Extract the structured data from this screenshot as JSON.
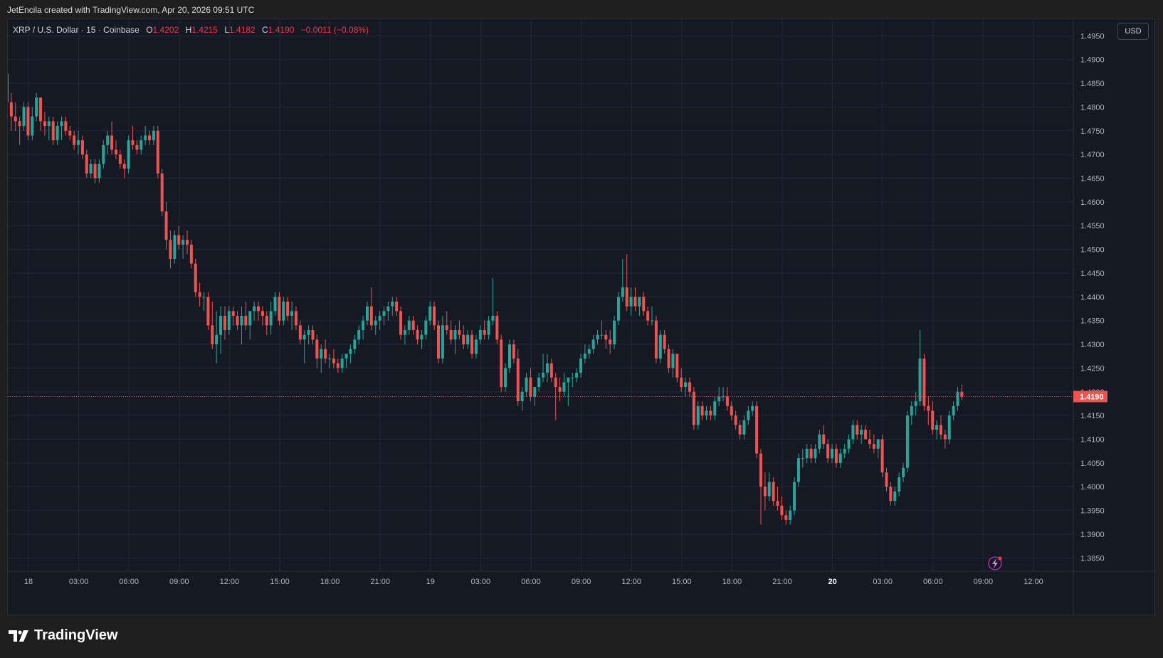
{
  "header": {
    "credit": "JetEncila created with TradingView.com, Apr 20, 2026 09:51 UTC"
  },
  "legend": {
    "symbol": "XRP / U.S. Dollar · 15 · Coinbase",
    "o_label": "O",
    "o_value": "1.4202",
    "h_label": "H",
    "h_value": "1.4215",
    "l_label": "L",
    "l_value": "1.4182",
    "c_label": "C",
    "c_value": "1.4190",
    "change": "−0.0011 (−0.08%)"
  },
  "currency_button": "USD",
  "brand": {
    "name": "TradingView",
    "icon": "tradingview-logo-icon"
  },
  "colors": {
    "up": "#26a69a",
    "down": "#ef5350",
    "grid": "#232733",
    "background": "#151924",
    "text": "#b2b5be"
  },
  "chart_data": {
    "type": "candlestick",
    "symbol": "XRP / U.S. Dollar",
    "interval": "15",
    "exchange": "Coinbase",
    "last_price": 1.419,
    "last_price_label": "1.4190",
    "ylim": [
      1.3825,
      1.4955
    ],
    "y_ticks": [
      "1.4950",
      "1.4900",
      "1.4850",
      "1.4800",
      "1.4750",
      "1.4700",
      "1.4650",
      "1.4600",
      "1.4550",
      "1.4500",
      "1.4450",
      "1.4400",
      "1.4350",
      "1.4300",
      "1.4250",
      "1.4200",
      "1.4150",
      "1.4100",
      "1.4050",
      "1.4000",
      "1.3950",
      "1.3900",
      "1.3850"
    ],
    "x_ticks": [
      {
        "label": "18",
        "bold": false
      },
      {
        "label": "03:00",
        "bold": false
      },
      {
        "label": "06:00",
        "bold": false
      },
      {
        "label": "09:00",
        "bold": false
      },
      {
        "label": "12:00",
        "bold": false
      },
      {
        "label": "15:00",
        "bold": false
      },
      {
        "label": "18:00",
        "bold": false
      },
      {
        "label": "21:00",
        "bold": false
      },
      {
        "label": "19",
        "bold": false
      },
      {
        "label": "03:00",
        "bold": false
      },
      {
        "label": "06:00",
        "bold": false
      },
      {
        "label": "09:00",
        "bold": false
      },
      {
        "label": "12:00",
        "bold": false
      },
      {
        "label": "15:00",
        "bold": false
      },
      {
        "label": "18:00",
        "bold": false
      },
      {
        "label": "21:00",
        "bold": false
      },
      {
        "label": "20",
        "bold": true
      },
      {
        "label": "03:00",
        "bold": false
      },
      {
        "label": "06:00",
        "bold": false
      },
      {
        "label": "09:00",
        "bold": false
      },
      {
        "label": "12:00",
        "bold": false
      }
    ],
    "grid": true,
    "ohlc": [
      [
        1.487,
        1.488,
        1.476,
        1.481
      ],
      [
        1.481,
        1.483,
        1.475,
        1.478
      ],
      [
        1.478,
        1.481,
        1.475,
        1.477
      ],
      [
        1.477,
        1.478,
        1.472,
        1.476
      ],
      [
        1.476,
        1.481,
        1.475,
        1.48
      ],
      [
        1.48,
        1.481,
        1.473,
        1.474
      ],
      [
        1.474,
        1.48,
        1.473,
        1.478
      ],
      [
        1.478,
        1.483,
        1.477,
        1.482
      ],
      [
        1.482,
        1.482,
        1.475,
        1.477
      ],
      [
        1.477,
        1.479,
        1.474,
        1.476
      ],
      [
        1.476,
        1.478,
        1.473,
        1.477
      ],
      [
        1.477,
        1.478,
        1.472,
        1.473
      ],
      [
        1.473,
        1.477,
        1.472,
        1.476
      ],
      [
        1.476,
        1.478,
        1.473,
        1.477
      ],
      [
        1.477,
        1.478,
        1.474,
        1.475
      ],
      [
        1.475,
        1.476,
        1.473,
        1.474
      ],
      [
        1.474,
        1.475,
        1.471,
        1.472
      ],
      [
        1.472,
        1.475,
        1.47,
        1.473
      ],
      [
        1.473,
        1.474,
        1.469,
        1.47
      ],
      [
        1.47,
        1.471,
        1.465,
        1.466
      ],
      [
        1.466,
        1.469,
        1.465,
        1.468
      ],
      [
        1.468,
        1.469,
        1.464,
        1.465
      ],
      [
        1.465,
        1.469,
        1.464,
        1.468
      ],
      [
        1.468,
        1.473,
        1.467,
        1.472
      ],
      [
        1.472,
        1.475,
        1.47,
        1.474
      ],
      [
        1.474,
        1.477,
        1.47,
        1.471
      ],
      [
        1.471,
        1.473,
        1.469,
        1.47
      ],
      [
        1.47,
        1.471,
        1.467,
        1.468
      ],
      [
        1.468,
        1.469,
        1.465,
        1.467
      ],
      [
        1.467,
        1.474,
        1.466,
        1.473
      ],
      [
        1.473,
        1.476,
        1.471,
        1.472
      ],
      [
        1.472,
        1.473,
        1.47,
        1.471
      ],
      [
        1.471,
        1.474,
        1.47,
        1.473
      ],
      [
        1.473,
        1.476,
        1.472,
        1.474
      ],
      [
        1.474,
        1.475,
        1.472,
        1.473
      ],
      [
        1.473,
        1.476,
        1.472,
        1.475
      ],
      [
        1.475,
        1.476,
        1.465,
        1.466
      ],
      [
        1.466,
        1.467,
        1.457,
        1.458
      ],
      [
        1.458,
        1.46,
        1.45,
        1.452
      ],
      [
        1.452,
        1.454,
        1.446,
        1.448
      ],
      [
        1.448,
        1.454,
        1.447,
        1.453
      ],
      [
        1.453,
        1.455,
        1.45,
        1.451
      ],
      [
        1.451,
        1.453,
        1.448,
        1.452
      ],
      [
        1.452,
        1.454,
        1.449,
        1.451
      ],
      [
        1.451,
        1.452,
        1.446,
        1.447
      ],
      [
        1.447,
        1.448,
        1.44,
        1.441
      ],
      [
        1.441,
        1.443,
        1.438,
        1.44
      ],
      [
        1.44,
        1.441,
        1.437,
        1.44
      ],
      [
        1.44,
        1.441,
        1.433,
        1.434
      ],
      [
        1.434,
        1.439,
        1.429,
        1.43
      ],
      [
        1.43,
        1.437,
        1.426,
        1.432
      ],
      [
        1.432,
        1.438,
        1.428,
        1.436
      ],
      [
        1.436,
        1.438,
        1.431,
        1.433
      ],
      [
        1.433,
        1.438,
        1.432,
        1.437
      ],
      [
        1.437,
        1.438,
        1.434,
        1.436
      ],
      [
        1.436,
        1.437,
        1.433,
        1.434
      ],
      [
        1.434,
        1.438,
        1.43,
        1.436
      ],
      [
        1.436,
        1.439,
        1.433,
        1.434
      ],
      [
        1.434,
        1.437,
        1.431,
        1.437
      ],
      [
        1.437,
        1.439,
        1.435,
        1.438
      ],
      [
        1.438,
        1.439,
        1.435,
        1.437
      ],
      [
        1.437,
        1.438,
        1.434,
        1.436
      ],
      [
        1.436,
        1.437,
        1.432,
        1.434
      ],
      [
        1.434,
        1.439,
        1.432,
        1.437
      ],
      [
        1.437,
        1.441,
        1.436,
        1.44
      ],
      [
        1.44,
        1.441,
        1.434,
        1.435
      ],
      [
        1.435,
        1.44,
        1.434,
        1.439
      ],
      [
        1.439,
        1.44,
        1.435,
        1.436
      ],
      [
        1.436,
        1.439,
        1.433,
        1.437
      ],
      [
        1.437,
        1.438,
        1.433,
        1.434
      ],
      [
        1.434,
        1.435,
        1.43,
        1.431
      ],
      [
        1.431,
        1.433,
        1.426,
        1.432
      ],
      [
        1.432,
        1.434,
        1.43,
        1.433
      ],
      [
        1.433,
        1.434,
        1.43,
        1.431
      ],
      [
        1.431,
        1.432,
        1.425,
        1.427
      ],
      [
        1.427,
        1.43,
        1.424,
        1.429
      ],
      [
        1.429,
        1.431,
        1.426,
        1.427
      ],
      [
        1.427,
        1.428,
        1.425,
        1.427
      ],
      [
        1.427,
        1.429,
        1.425,
        1.426
      ],
      [
        1.426,
        1.427,
        1.424,
        1.425
      ],
      [
        1.425,
        1.428,
        1.424,
        1.427
      ],
      [
        1.427,
        1.428,
        1.425,
        1.428
      ],
      [
        1.428,
        1.43,
        1.426,
        1.429
      ],
      [
        1.429,
        1.432,
        1.428,
        1.431
      ],
      [
        1.431,
        1.434,
        1.43,
        1.433
      ],
      [
        1.433,
        1.436,
        1.431,
        1.435
      ],
      [
        1.435,
        1.439,
        1.434,
        1.438
      ],
      [
        1.438,
        1.442,
        1.433,
        1.434
      ],
      [
        1.434,
        1.436,
        1.432,
        1.435
      ],
      [
        1.435,
        1.437,
        1.433,
        1.436
      ],
      [
        1.436,
        1.438,
        1.434,
        1.437
      ],
      [
        1.437,
        1.439,
        1.435,
        1.438
      ],
      [
        1.438,
        1.44,
        1.436,
        1.439
      ],
      [
        1.439,
        1.44,
        1.436,
        1.437
      ],
      [
        1.437,
        1.438,
        1.431,
        1.432
      ],
      [
        1.432,
        1.434,
        1.43,
        1.433
      ],
      [
        1.433,
        1.436,
        1.432,
        1.435
      ],
      [
        1.435,
        1.436,
        1.432,
        1.433
      ],
      [
        1.433,
        1.434,
        1.43,
        1.431
      ],
      [
        1.431,
        1.433,
        1.429,
        1.432
      ],
      [
        1.432,
        1.436,
        1.431,
        1.435
      ],
      [
        1.435,
        1.439,
        1.434,
        1.438
      ],
      [
        1.438,
        1.439,
        1.433,
        1.434
      ],
      [
        1.434,
        1.435,
        1.426,
        1.427
      ],
      [
        1.427,
        1.436,
        1.426,
        1.434
      ],
      [
        1.434,
        1.437,
        1.432,
        1.433
      ],
      [
        1.433,
        1.435,
        1.43,
        1.431
      ],
      [
        1.431,
        1.434,
        1.428,
        1.433
      ],
      [
        1.433,
        1.435,
        1.431,
        1.432
      ],
      [
        1.432,
        1.434,
        1.429,
        1.43
      ],
      [
        1.43,
        1.433,
        1.429,
        1.432
      ],
      [
        1.432,
        1.433,
        1.427,
        1.428
      ],
      [
        1.428,
        1.432,
        1.427,
        1.431
      ],
      [
        1.431,
        1.434,
        1.43,
        1.433
      ],
      [
        1.433,
        1.435,
        1.431,
        1.432
      ],
      [
        1.432,
        1.436,
        1.431,
        1.435
      ],
      [
        1.435,
        1.444,
        1.434,
        1.436
      ],
      [
        1.436,
        1.437,
        1.43,
        1.431
      ],
      [
        1.431,
        1.432,
        1.42,
        1.421
      ],
      [
        1.421,
        1.426,
        1.42,
        1.425
      ],
      [
        1.425,
        1.431,
        1.424,
        1.43
      ],
      [
        1.43,
        1.431,
        1.426,
        1.427
      ],
      [
        1.427,
        1.429,
        1.417,
        1.418
      ],
      [
        1.418,
        1.421,
        1.416,
        1.42
      ],
      [
        1.42,
        1.424,
        1.419,
        1.423
      ],
      [
        1.423,
        1.425,
        1.418,
        1.419
      ],
      [
        1.419,
        1.421,
        1.417,
        1.421
      ],
      [
        1.421,
        1.424,
        1.42,
        1.423
      ],
      [
        1.423,
        1.428,
        1.422,
        1.424
      ],
      [
        1.424,
        1.428,
        1.422,
        1.426
      ],
      [
        1.426,
        1.427,
        1.422,
        1.423
      ],
      [
        1.423,
        1.424,
        1.414,
        1.421
      ],
      [
        1.421,
        1.423,
        1.418,
        1.42
      ],
      [
        1.42,
        1.424,
        1.419,
        1.422
      ],
      [
        1.422,
        1.423,
        1.417,
        1.423
      ],
      [
        1.423,
        1.424,
        1.421,
        1.423
      ],
      [
        1.423,
        1.425,
        1.422,
        1.424
      ],
      [
        1.424,
        1.428,
        1.423,
        1.427
      ],
      [
        1.427,
        1.43,
        1.426,
        1.428
      ],
      [
        1.428,
        1.43,
        1.427,
        1.429
      ],
      [
        1.429,
        1.432,
        1.428,
        1.431
      ],
      [
        1.431,
        1.433,
        1.43,
        1.432
      ],
      [
        1.432,
        1.435,
        1.431,
        1.432
      ],
      [
        1.432,
        1.433,
        1.429,
        1.431
      ],
      [
        1.431,
        1.433,
        1.428,
        1.43
      ],
      [
        1.43,
        1.436,
        1.429,
        1.435
      ],
      [
        1.435,
        1.441,
        1.434,
        1.44
      ],
      [
        1.44,
        1.448,
        1.439,
        1.442
      ],
      [
        1.442,
        1.449,
        1.437,
        1.438
      ],
      [
        1.438,
        1.442,
        1.436,
        1.44
      ],
      [
        1.44,
        1.442,
        1.437,
        1.438
      ],
      [
        1.438,
        1.44,
        1.436,
        1.44
      ],
      [
        1.44,
        1.441,
        1.436,
        1.437
      ],
      [
        1.437,
        1.438,
        1.434,
        1.435
      ],
      [
        1.435,
        1.438,
        1.434,
        1.435
      ],
      [
        1.435,
        1.436,
        1.426,
        1.427
      ],
      [
        1.427,
        1.433,
        1.426,
        1.432
      ],
      [
        1.432,
        1.433,
        1.428,
        1.429
      ],
      [
        1.429,
        1.43,
        1.424,
        1.425
      ],
      [
        1.425,
        1.429,
        1.423,
        1.428
      ],
      [
        1.428,
        1.428,
        1.422,
        1.423
      ],
      [
        1.423,
        1.425,
        1.42,
        1.421
      ],
      [
        1.421,
        1.423,
        1.419,
        1.422
      ],
      [
        1.422,
        1.423,
        1.419,
        1.42
      ],
      [
        1.42,
        1.421,
        1.412,
        1.413
      ],
      [
        1.413,
        1.418,
        1.412,
        1.417
      ],
      [
        1.417,
        1.418,
        1.414,
        1.415
      ],
      [
        1.415,
        1.417,
        1.414,
        1.416
      ],
      [
        1.416,
        1.417,
        1.414,
        1.415
      ],
      [
        1.415,
        1.419,
        1.414,
        1.418
      ],
      [
        1.418,
        1.421,
        1.417,
        1.419
      ],
      [
        1.419,
        1.421,
        1.418,
        1.419
      ],
      [
        1.419,
        1.421,
        1.416,
        1.417
      ],
      [
        1.417,
        1.418,
        1.414,
        1.415
      ],
      [
        1.415,
        1.416,
        1.412,
        1.413
      ],
      [
        1.413,
        1.414,
        1.41,
        1.411
      ],
      [
        1.411,
        1.415,
        1.41,
        1.414
      ],
      [
        1.414,
        1.417,
        1.413,
        1.416
      ],
      [
        1.416,
        1.418,
        1.415,
        1.417
      ],
      [
        1.417,
        1.418,
        1.406,
        1.407
      ],
      [
        1.407,
        1.408,
        1.392,
        1.4
      ],
      [
        1.4,
        1.403,
        1.395,
        1.398
      ],
      [
        1.398,
        1.403,
        1.397,
        1.401
      ],
      [
        1.401,
        1.402,
        1.396,
        1.397
      ],
      [
        1.397,
        1.4,
        1.395,
        1.396
      ],
      [
        1.396,
        1.398,
        1.393,
        1.394
      ],
      [
        1.394,
        1.395,
        1.392,
        1.393
      ],
      [
        1.393,
        1.396,
        1.392,
        1.395
      ],
      [
        1.395,
        1.402,
        1.394,
        1.401
      ],
      [
        1.401,
        1.407,
        1.4,
        1.406
      ],
      [
        1.406,
        1.408,
        1.404,
        1.406
      ],
      [
        1.406,
        1.409,
        1.405,
        1.408
      ],
      [
        1.408,
        1.409,
        1.405,
        1.406
      ],
      [
        1.406,
        1.409,
        1.405,
        1.408
      ],
      [
        1.408,
        1.412,
        1.407,
        1.411
      ],
      [
        1.411,
        1.413,
        1.408,
        1.409
      ],
      [
        1.409,
        1.41,
        1.405,
        1.406
      ],
      [
        1.406,
        1.409,
        1.405,
        1.408
      ],
      [
        1.408,
        1.409,
        1.404,
        1.405
      ],
      [
        1.405,
        1.408,
        1.404,
        1.407
      ],
      [
        1.407,
        1.409,
        1.406,
        1.408
      ],
      [
        1.408,
        1.411,
        1.407,
        1.41
      ],
      [
        1.41,
        1.414,
        1.409,
        1.413
      ],
      [
        1.413,
        1.414,
        1.41,
        1.411
      ],
      [
        1.411,
        1.413,
        1.409,
        1.412
      ],
      [
        1.412,
        1.413,
        1.41,
        1.41
      ],
      [
        1.41,
        1.412,
        1.408,
        1.409
      ],
      [
        1.409,
        1.411,
        1.407,
        1.408
      ],
      [
        1.408,
        1.41,
        1.406,
        1.41
      ],
      [
        1.41,
        1.411,
        1.402,
        1.403
      ],
      [
        1.403,
        1.404,
        1.399,
        1.4
      ],
      [
        1.4,
        1.401,
        1.396,
        1.397
      ],
      [
        1.397,
        1.4,
        1.396,
        1.399
      ],
      [
        1.399,
        1.403,
        1.398,
        1.402
      ],
      [
        1.402,
        1.405,
        1.401,
        1.404
      ],
      [
        1.404,
        1.416,
        1.403,
        1.415
      ],
      [
        1.415,
        1.418,
        1.413,
        1.417
      ],
      [
        1.417,
        1.42,
        1.415,
        1.418
      ],
      [
        1.418,
        1.433,
        1.417,
        1.427
      ],
      [
        1.427,
        1.428,
        1.416,
        1.417
      ],
      [
        1.417,
        1.419,
        1.413,
        1.416
      ],
      [
        1.416,
        1.418,
        1.411,
        1.412
      ],
      [
        1.412,
        1.414,
        1.41,
        1.413
      ],
      [
        1.413,
        1.415,
        1.41,
        1.411
      ],
      [
        1.411,
        1.412,
        1.408,
        1.41
      ],
      [
        1.41,
        1.416,
        1.409,
        1.415
      ],
      [
        1.415,
        1.418,
        1.414,
        1.417
      ],
      [
        1.417,
        1.421,
        1.416,
        1.42
      ],
      [
        1.42,
        1.4215,
        1.4182,
        1.419
      ]
    ]
  }
}
